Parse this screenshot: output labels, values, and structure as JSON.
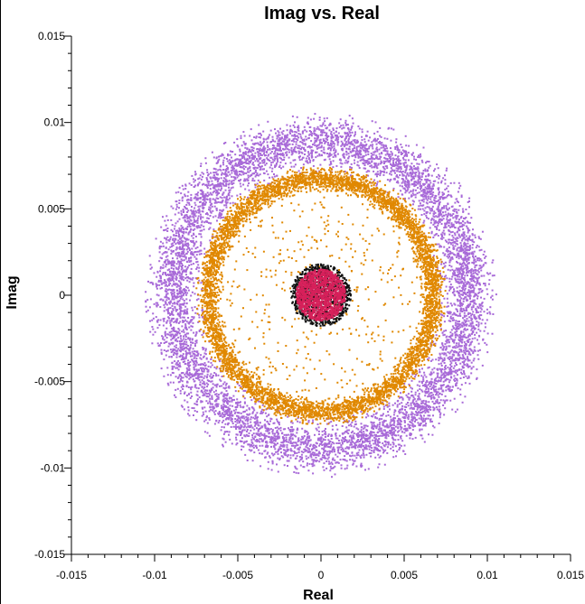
{
  "chart_data": {
    "type": "scatter",
    "title": "Imag vs. Real",
    "xlabel": "Real",
    "ylabel": "Imag",
    "xlim": [
      -0.015,
      0.015
    ],
    "ylim": [
      -0.015,
      0.015
    ],
    "xticks": [
      -0.015,
      -0.01,
      -0.005,
      0,
      0.005,
      0.01,
      0.015
    ],
    "yticks": [
      -0.015,
      -0.01,
      -0.005,
      0,
      0.005,
      0.01,
      0.015
    ],
    "xtick_labels": [
      "-0.015",
      "-0.01",
      "-0.005",
      "0",
      "0.005",
      "0.01",
      "0.015"
    ],
    "ytick_labels": [
      "-0.015",
      "-0.01",
      "-0.005",
      "0",
      "0.005",
      "0.01",
      "0.015"
    ],
    "grid": false,
    "series": [
      {
        "color": "#a86ad8",
        "shape": "annulus",
        "center": [
          0,
          0
        ],
        "r_inner": 0.0076,
        "r_outer": 0.0101,
        "points": 7000,
        "sparse_inner_points": 0
      },
      {
        "color": "#e08800",
        "shape": "annulus",
        "center": [
          0,
          0
        ],
        "r_inner": 0.0062,
        "r_outer": 0.0073,
        "points": 5500,
        "sparse_inner_points": 420
      },
      {
        "color": "#111111",
        "shape": "disk",
        "center": [
          0,
          0
        ],
        "r_inner": 0,
        "r_outer": 0.0018,
        "points": 1000,
        "sparse_inner_points": 0
      },
      {
        "color": "#d6205a",
        "shape": "disk",
        "center": [
          0,
          0
        ],
        "r_inner": 0,
        "r_outer": 0.0015,
        "points": 1300,
        "sparse_inner_points": 0
      }
    ]
  }
}
